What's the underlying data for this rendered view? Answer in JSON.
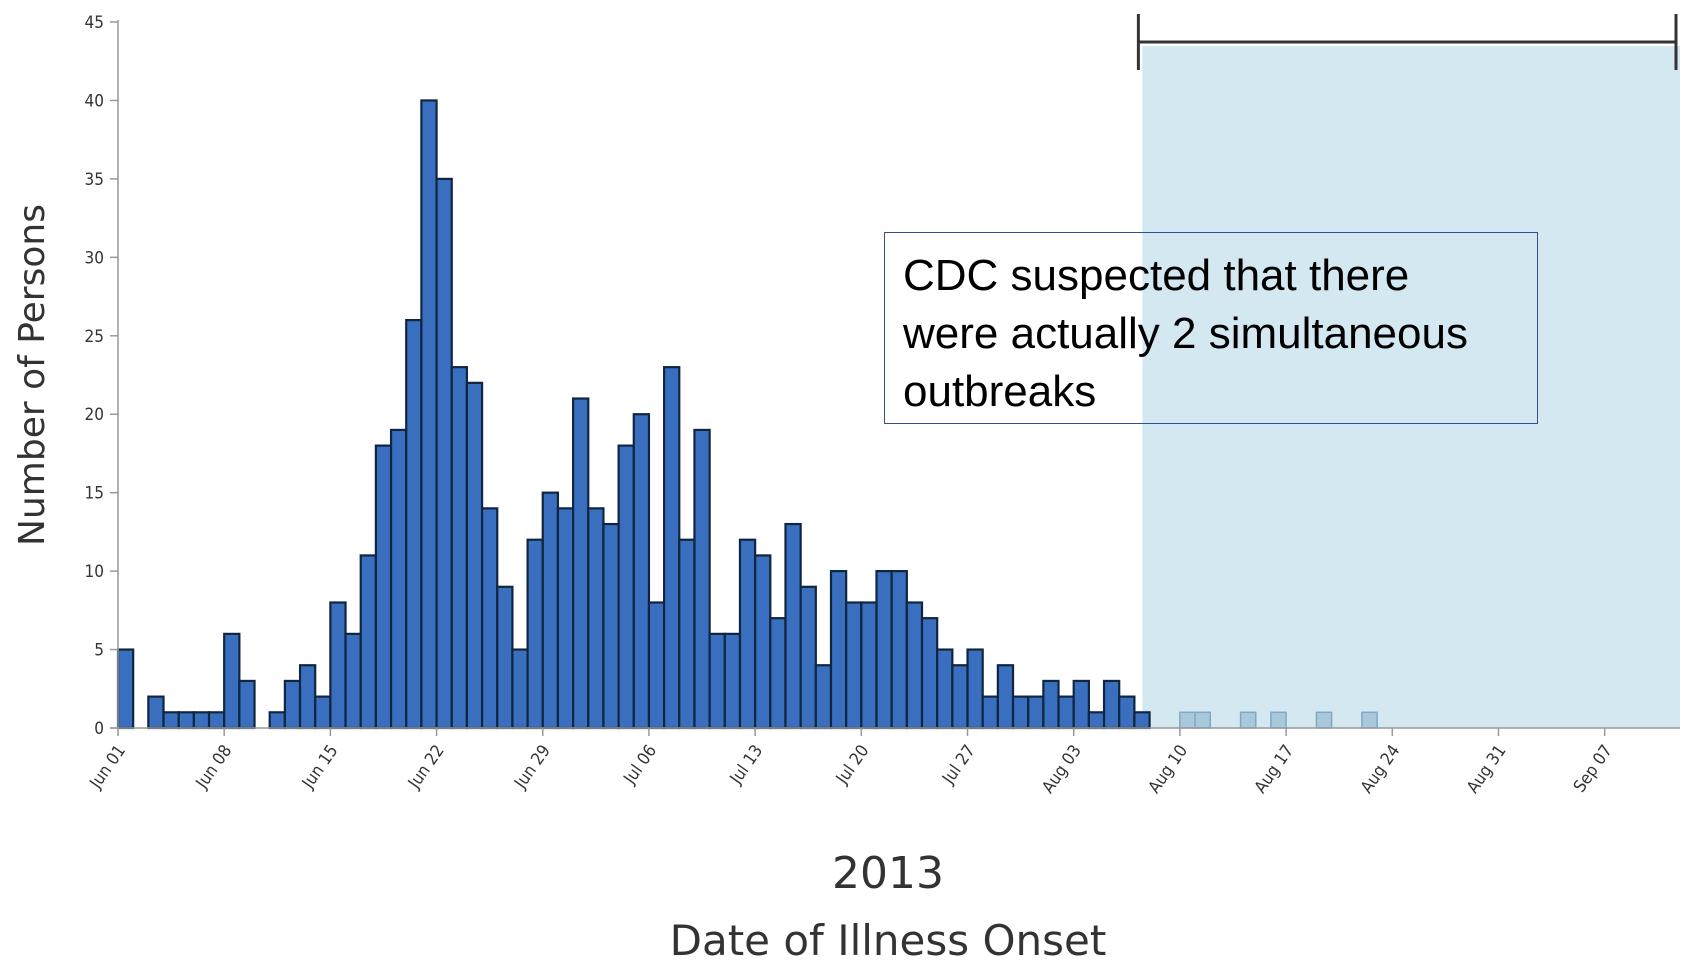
{
  "chart_data": {
    "type": "bar",
    "xlabel_year": "2013",
    "xlabel": "Date of Illness Onset",
    "ylabel": "Number of Persons",
    "ylim": [
      0,
      45
    ],
    "yticks": [
      "0",
      "5",
      "10",
      "15",
      "20",
      "25",
      "30",
      "35",
      "40",
      "45"
    ],
    "xticks": [
      "Jun 01",
      "Jun 08",
      "Jun 15",
      "Jun 22",
      "Jun 29",
      "Jul 06",
      "Jul 13",
      "Jul 20",
      "Jul 27",
      "Aug 03",
      "Aug 10",
      "Aug 17",
      "Aug 24",
      "Aug 31",
      "Sep 07"
    ],
    "start_date": "2013-06-01",
    "series": [
      {
        "values": [
          5,
          0,
          2,
          1,
          1,
          1,
          1,
          6,
          3,
          0,
          1,
          3,
          4,
          2,
          8,
          6,
          11,
          18,
          19,
          26,
          40,
          35,
          23,
          22,
          14,
          9,
          5,
          12,
          15,
          14,
          21,
          14,
          13,
          18,
          20,
          8,
          23,
          12,
          19,
          6,
          6,
          12,
          11,
          7,
          13,
          9,
          4,
          10,
          8,
          8,
          10,
          10,
          8,
          7,
          5,
          4,
          5,
          2,
          4,
          2,
          2,
          3,
          2,
          3,
          1,
          3,
          2,
          1
        ]
      },
      {
        "dates": [
          "2013-08-10",
          "2013-08-11",
          "2013-08-14",
          "2013-08-16",
          "2013-08-19",
          "2013-08-22"
        ],
        "values": [
          1,
          1,
          1,
          1,
          1,
          1
        ]
      }
    ],
    "highlight_region": {
      "start": "2013-08-07",
      "end": "2013-09-13",
      "color": "#d3e8f0"
    },
    "bar_color": "#3a6fc0",
    "bar_color_late": "#a9c8dc"
  },
  "annotation": {
    "text": "CDC suspected that there\nwere actually 2 simultaneous\noutbreaks"
  }
}
